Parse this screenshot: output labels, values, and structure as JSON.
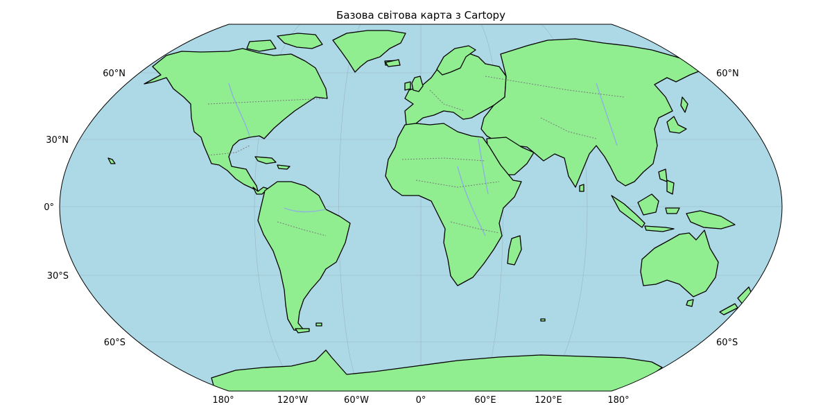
{
  "title": "Базова світова карта з Cartopy",
  "colors": {
    "ocean": "#add8e6",
    "land": "#90ee90",
    "coastline": "#000000",
    "borders": "#7a7a7a",
    "rivers": "#8fb0e0",
    "gridlines": "#8a9aa3"
  },
  "lat_labels_left": [
    "60°N",
    "30°N",
    "0°",
    "30°S",
    "60°S"
  ],
  "lat_labels_right": [
    "60°N",
    "60°S"
  ],
  "lon_labels_bottom": [
    "180°",
    "120°W",
    "60°W",
    "0°",
    "60°E",
    "120°E",
    "180°"
  ]
}
